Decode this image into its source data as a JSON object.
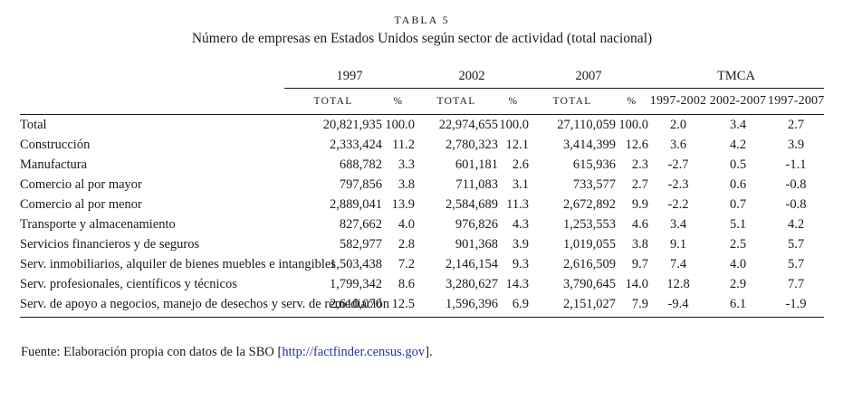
{
  "title": {
    "label": "TABLA 5",
    "subtitle": "Número de empresas en Estados Unidos según sector de actividad (total nacional)"
  },
  "colors": {
    "link": "#2233aa",
    "text": "#1a1a1a",
    "background": "#ffffff"
  },
  "table": {
    "year_groups": [
      "1997",
      "2002",
      "2007"
    ],
    "tmca_label": "TMCA",
    "total_label": "TOTAL",
    "pct_label": "%",
    "tmca_headers": [
      "1997-2002",
      "2002-2007",
      "1997-2007"
    ],
    "rows": [
      {
        "label": "Total",
        "values": [
          "20,821,935",
          "100.0",
          "22,974,655",
          "100.0",
          "27,110,059",
          "100.0",
          "2.0",
          "3.4",
          "2.7"
        ]
      },
      {
        "label": "Construcción",
        "values": [
          "2,333,424",
          "11.2",
          "2,780,323",
          "12.1",
          "3,414,399",
          "12.6",
          "3.6",
          "4.2",
          "3.9"
        ]
      },
      {
        "label": "Manufactura",
        "values": [
          "688,782",
          "3.3",
          "601,181",
          "2.6",
          "615,936",
          "2.3",
          "-2.7",
          "0.5",
          "-1.1"
        ]
      },
      {
        "label": "Comercio al por mayor",
        "values": [
          "797,856",
          "3.8",
          "711,083",
          "3.1",
          "733,577",
          "2.7",
          "-2.3",
          "0.6",
          "-0.8"
        ]
      },
      {
        "label": "Comercio al por menor",
        "values": [
          "2,889,041",
          "13.9",
          "2,584,689",
          "11.3",
          "2,672,892",
          "9.9",
          "-2.2",
          "0.7",
          "-0.8"
        ]
      },
      {
        "label": "Transporte y almacenamiento",
        "values": [
          "827,662",
          "4.0",
          "976,826",
          "4.3",
          "1,253,553",
          "4.6",
          "3.4",
          "5.1",
          "4.2"
        ]
      },
      {
        "label": "Servicios financieros y de seguros",
        "values": [
          "582,977",
          "2.8",
          "901,368",
          "3.9",
          "1,019,055",
          "3.8",
          "9.1",
          "2.5",
          "5.7"
        ]
      },
      {
        "label": "Serv. inmobiliarios, alquiler de bienes muebles e intangibles",
        "values": [
          "1,503,438",
          "7.2",
          "2,146,154",
          "9.3",
          "2,616,509",
          "9.7",
          "7.4",
          "4.0",
          "5.7"
        ]
      },
      {
        "label": "Serv. profesionales, científicos y técnicos",
        "values": [
          "1,799,342",
          "8.6",
          "3,280,627",
          "14.3",
          "3,790,645",
          "14.0",
          "12.8",
          "2.9",
          "7.7"
        ]
      },
      {
        "label": "Serv. de apoyo a negocios, manejo de desechos y serv. de remediación",
        "values": [
          "2,610,070",
          "12.5",
          "1,596,396",
          "6.9",
          "2,151,027",
          "7.9",
          "-9.4",
          "6.1",
          "-1.9"
        ]
      }
    ]
  },
  "footer": {
    "prefix": "Fuente: Elaboración propia con datos de la SBO [",
    "link": "http://factfinder.census.gov",
    "suffix": "]."
  }
}
